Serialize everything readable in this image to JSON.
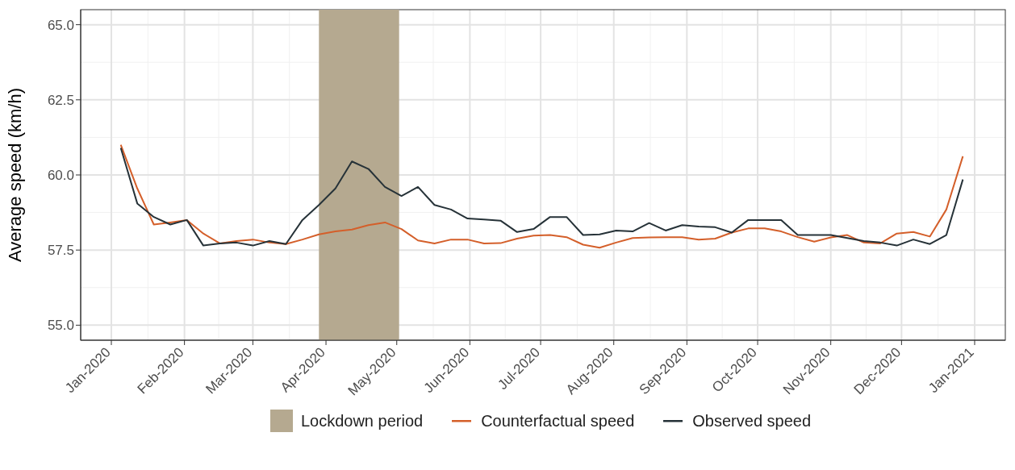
{
  "chart_data": {
    "type": "line",
    "ylabel": "Average speed (km/h)",
    "x": [
      "2020-01-05",
      "2020-01-12",
      "2020-01-19",
      "2020-01-26",
      "2020-02-02",
      "2020-02-09",
      "2020-02-16",
      "2020-02-23",
      "2020-03-01",
      "2020-03-08",
      "2020-03-15",
      "2020-03-22",
      "2020-03-29",
      "2020-04-05",
      "2020-04-12",
      "2020-04-19",
      "2020-04-26",
      "2020-05-03",
      "2020-05-10",
      "2020-05-17",
      "2020-05-24",
      "2020-05-31",
      "2020-06-07",
      "2020-06-14",
      "2020-06-21",
      "2020-06-28",
      "2020-07-05",
      "2020-07-12",
      "2020-07-19",
      "2020-07-26",
      "2020-08-02",
      "2020-08-09",
      "2020-08-16",
      "2020-08-23",
      "2020-08-30",
      "2020-09-06",
      "2020-09-13",
      "2020-09-20",
      "2020-09-27",
      "2020-10-04",
      "2020-10-11",
      "2020-10-18",
      "2020-10-25",
      "2020-11-01",
      "2020-11-08",
      "2020-11-15",
      "2020-11-22",
      "2020-11-29",
      "2020-12-06",
      "2020-12-13",
      "2020-12-20",
      "2020-12-27"
    ],
    "series": [
      {
        "name": "Counterfactual speed",
        "color": "#d45f2a",
        "values": [
          61.0,
          59.55,
          58.35,
          58.42,
          58.5,
          58.05,
          57.72,
          57.8,
          57.85,
          57.75,
          57.7,
          57.85,
          58.02,
          58.12,
          58.18,
          58.33,
          58.42,
          58.2,
          57.82,
          57.72,
          57.85,
          57.85,
          57.72,
          57.73,
          57.88,
          57.98,
          58.0,
          57.93,
          57.68,
          57.58,
          57.75,
          57.9,
          57.92,
          57.93,
          57.93,
          57.85,
          57.88,
          58.08,
          58.22,
          58.22,
          58.12,
          57.93,
          57.78,
          57.92,
          58.0,
          57.75,
          57.72,
          58.05,
          58.1,
          57.95,
          58.85,
          60.62
        ]
      },
      {
        "name": "Observed speed",
        "color": "#263238",
        "values": [
          60.9,
          59.05,
          58.6,
          58.35,
          58.5,
          57.65,
          57.72,
          57.75,
          57.65,
          57.8,
          57.7,
          58.5,
          59.0,
          59.55,
          60.45,
          60.2,
          59.6,
          59.3,
          59.6,
          59.0,
          58.85,
          58.55,
          58.52,
          58.48,
          58.1,
          58.2,
          58.6,
          58.6,
          58.0,
          58.02,
          58.15,
          58.12,
          58.4,
          58.15,
          58.33,
          58.28,
          58.26,
          58.08,
          58.5,
          58.5,
          58.5,
          58.0,
          58.0,
          58.0,
          57.9,
          57.8,
          57.75,
          57.65,
          57.85,
          57.7,
          58.0,
          59.85
        ]
      }
    ],
    "bands": [
      {
        "axis": "x",
        "from": "2020-03-29",
        "to": "2020-05-02",
        "label": "Lockdown period",
        "color": "#b5a990"
      }
    ],
    "xlim": [
      "2019-12-19",
      "2021-01-14"
    ],
    "xticks": [
      {
        "value": "2020-01-01",
        "label": "Jan-2020"
      },
      {
        "value": "2020-02-01",
        "label": "Feb-2020"
      },
      {
        "value": "2020-03-01",
        "label": "Mar-2020"
      },
      {
        "value": "2020-04-01",
        "label": "Apr-2020"
      },
      {
        "value": "2020-05-01",
        "label": "May-2020"
      },
      {
        "value": "2020-06-01",
        "label": "Jun-2020"
      },
      {
        "value": "2020-07-01",
        "label": "Jul-2020"
      },
      {
        "value": "2020-08-01",
        "label": "Aug-2020"
      },
      {
        "value": "2020-09-01",
        "label": "Sep-2020"
      },
      {
        "value": "2020-10-01",
        "label": "Oct-2020"
      },
      {
        "value": "2020-11-01",
        "label": "Nov-2020"
      },
      {
        "value": "2020-12-01",
        "label": "Dec-2020"
      },
      {
        "value": "2021-01-01",
        "label": "Jan-2021"
      }
    ],
    "ylim": [
      54.5,
      65.5
    ],
    "yticks": [
      {
        "value": 55,
        "label": "55.0"
      },
      {
        "value": 57.5,
        "label": "57.5"
      },
      {
        "value": 60,
        "label": "60.0"
      },
      {
        "value": 62.5,
        "label": "62.5"
      },
      {
        "value": 65,
        "label": "65.0"
      }
    ],
    "grid": true,
    "legend": "bottom",
    "marker": "none",
    "line_style": "solid"
  }
}
